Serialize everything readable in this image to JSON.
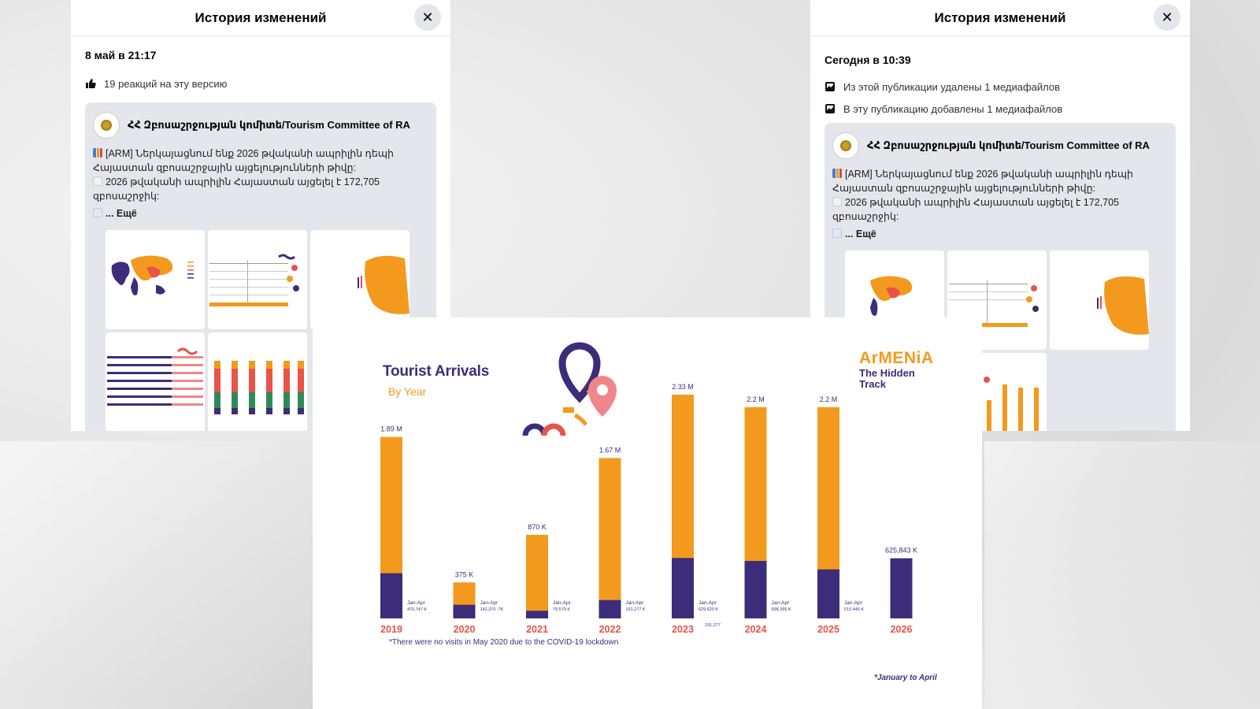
{
  "left_panel": {
    "title": "История изменений",
    "version_time": "8 май в 21:17",
    "reactions": "19 реакций на эту версию"
  },
  "right_panel": {
    "title": "История изменений",
    "version_time": "Сегодня в 10:39",
    "changes": [
      "Из этой публикации удалены 1 медиафайлов",
      "В эту публикацию добавлены 1 медиафайлов"
    ]
  },
  "post": {
    "page_name": "ՀՀ Զբոսաշրջության կոմիտե/Tourism Committee of RA",
    "line1": "[ARM] Ներկայացնում ենք 2026 թվականի ապրիլին դեպի Հայաստան զբոսաշրջային այցելությունների թիվը:",
    "line2": "2026 թվականի ապրիլին Հայաստան այցելել է 172,705 զբոսաշրջիկ:",
    "more": "... Ещё"
  },
  "icons": {
    "close": "close-icon",
    "reaction": "thumbs-up-icon",
    "media": "media-icon"
  },
  "colors": {
    "purple": "#3d2c7a",
    "orange": "#f39a1e",
    "coral": "#e8534a",
    "panel_bg": "#e4e6eb"
  },
  "infographic": {
    "title": "Tourist Arrivals",
    "subtitle": "By Year",
    "brand_name": "ArMENiA",
    "brand_tag_line1": "The Hidden",
    "brand_tag_line2": "Track",
    "note": "*There were no visits in May 2020 due to the COVID-19 lockdown",
    "footnote": "*January to April"
  },
  "chart_data": {
    "type": "bar",
    "title": "Tourist Arrivals",
    "subtitle": "By Year",
    "categories": [
      "2019",
      "2020",
      "2021",
      "2022",
      "2023",
      "2024",
      "2025",
      "2026"
    ],
    "series": [
      {
        "name": "Jan-Apr",
        "values": [
          470747,
          142370,
          79579,
          191277,
          629620,
          598395,
          510446,
          625843
        ]
      },
      {
        "name": "",
        "values": [
          1890000,
          375000,
          870000,
          1670000,
          2330000,
          2200000,
          2200000,
          625843
        ]
      }
    ],
    "total_labels": [
      "1.89 M",
      "375 K",
      "870 K",
      "1.67 M",
      "2.33 M",
      "2.2 M",
      "2.2 M",
      "625,843 K"
    ],
    "jan_apr_labels": [
      "470,747 K",
      "142,370 .7K",
      "79,579 K",
      "191,277 K",
      "629,620 K",
      "598,395 K",
      "510,446 K",
      ""
    ],
    "extra_label": "191,277",
    "ylim": [
      0,
      2330000
    ]
  }
}
